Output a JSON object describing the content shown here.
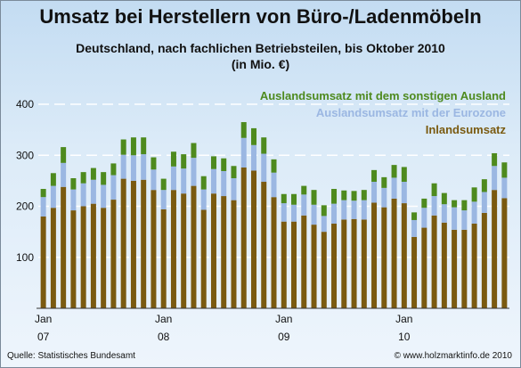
{
  "title": "Umsatz bei Herstellern von Büro-/Ladenmöbeln",
  "subtitle": "Deutschland, nach fachlichen Betriebsteilen, bis Oktober 2010",
  "unit": "(in Mio. €)",
  "source": "Quelle: Statistisches Bundesamt",
  "credit": "© www.holzmarktinfo.de 2010",
  "chart_data": {
    "type": "bar",
    "stacked": true,
    "ylim": [
      0,
      400
    ],
    "yticks": [
      100,
      200,
      300,
      400
    ],
    "grid": "horizontal dashed",
    "legend_position": "top-right",
    "xtick_labels": [
      {
        "index": 0,
        "month": "Jan",
        "year": "07"
      },
      {
        "index": 12,
        "month": "Jan",
        "year": "08"
      },
      {
        "index": 24,
        "month": "Jan",
        "year": "09"
      },
      {
        "index": 36,
        "month": "Jan",
        "year": "10"
      }
    ],
    "series": [
      {
        "name": "Inlandsumsatz",
        "color": "#7a5a10",
        "values": [
          180,
          197,
          238,
          192,
          200,
          205,
          197,
          213,
          254,
          250,
          252,
          232,
          194,
          232,
          225,
          240,
          193,
          225,
          220,
          212,
          276,
          270,
          248,
          218,
          170,
          170,
          182,
          164,
          150,
          166,
          174,
          175,
          174,
          207,
          198,
          215,
          206,
          140,
          158,
          182,
          168,
          154,
          154,
          166,
          187,
          232,
          216
        ]
      },
      {
        "name": "Auslandsumsatz mit der Eurozone",
        "color": "#9bb7e2",
        "values": [
          38,
          43,
          47,
          41,
          45,
          47,
          45,
          48,
          47,
          50,
          50,
          40,
          38,
          46,
          49,
          55,
          40,
          48,
          49,
          43,
          58,
          50,
          55,
          48,
          36,
          33,
          41,
          39,
          31,
          39,
          38,
          36,
          38,
          41,
          38,
          41,
          42,
          33,
          39,
          38,
          36,
          44,
          38,
          43,
          41,
          47,
          40
        ]
      },
      {
        "name": "Auslandsumsatz mit dem sonstigen Ausland",
        "color": "#4e8a1e",
        "values": [
          16,
          25,
          31,
          22,
          22,
          23,
          25,
          23,
          30,
          35,
          33,
          24,
          22,
          29,
          28,
          29,
          26,
          25,
          25,
          24,
          31,
          33,
          32,
          26,
          18,
          21,
          17,
          29,
          21,
          29,
          19,
          19,
          20,
          23,
          21,
          25,
          29,
          15,
          18,
          25,
          22,
          14,
          20,
          28,
          25,
          25,
          30
        ]
      }
    ]
  }
}
